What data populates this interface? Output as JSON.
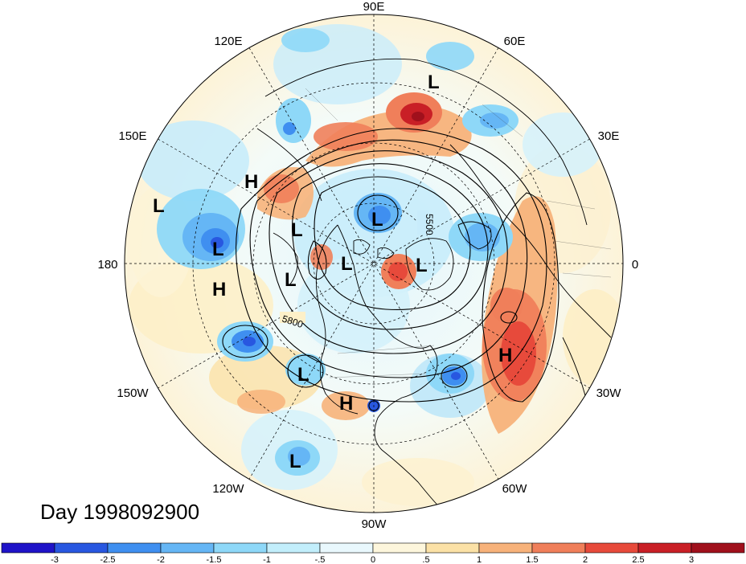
{
  "title": "Day 1998092900",
  "longitude_labels": {
    "n": "90E",
    "ne1": "60E",
    "ne2": "30E",
    "e": "0",
    "se1": "30W",
    "se2": "60W",
    "s": "90W",
    "sw1": "120W",
    "sw2": "150W",
    "w": "180",
    "nw1": "150E",
    "nw2": "120E"
  },
  "contour_labels": [
    "5500",
    "5800"
  ],
  "pressure_systems": [
    {
      "type": "L",
      "label": "L"
    },
    {
      "type": "L",
      "label": "L"
    },
    {
      "type": "L",
      "label": "L"
    },
    {
      "type": "L",
      "label": "L"
    },
    {
      "type": "L",
      "label": "L"
    },
    {
      "type": "L",
      "label": "L"
    },
    {
      "type": "L",
      "label": "L"
    },
    {
      "type": "L",
      "label": "L"
    },
    {
      "type": "L",
      "label": "L"
    },
    {
      "type": "L",
      "label": "L"
    },
    {
      "type": "H",
      "label": "H"
    },
    {
      "type": "H",
      "label": "H"
    },
    {
      "type": "H",
      "label": "H"
    },
    {
      "type": "H",
      "label": "H"
    }
  ],
  "colorbar": {
    "tick_labels": [
      "-3",
      "-2.5",
      "-2",
      "-1.5",
      "-1",
      "-.5",
      "0",
      ".5",
      "1",
      "1.5",
      "2",
      "2.5",
      "3"
    ],
    "colors": [
      "#1f13c8",
      "#2857e0",
      "#3f8ff0",
      "#65b6f5",
      "#8ed8f8",
      "#c2eefb",
      "#e9f8fd",
      "#fdf6dc",
      "#fbe1a6",
      "#f7b27a",
      "#f07f5a",
      "#e74a3b",
      "#c91f26",
      "#a0101c"
    ]
  }
}
